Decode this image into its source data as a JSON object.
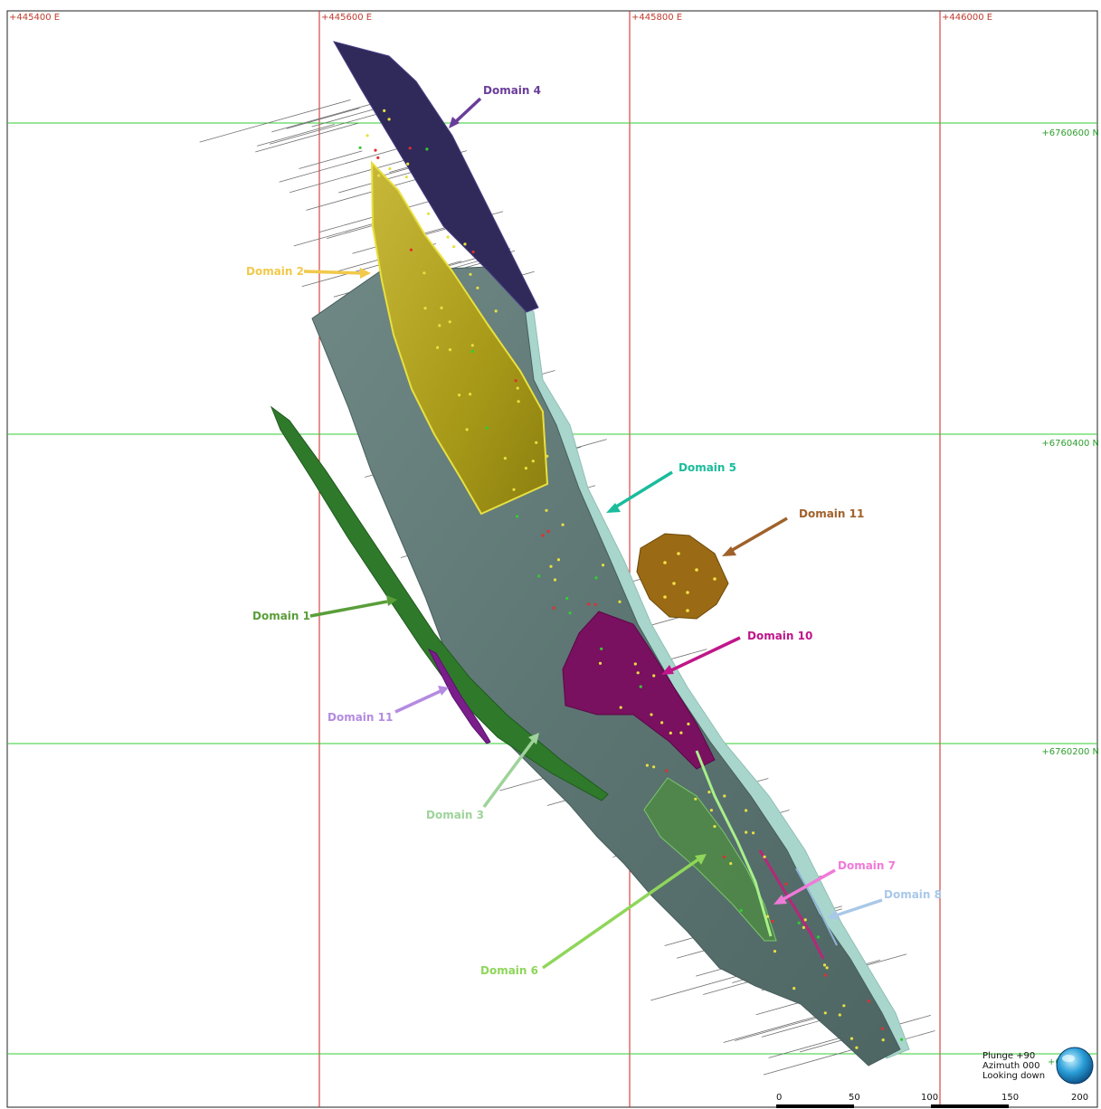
{
  "grid": {
    "eastings": [
      "+445400 E",
      "+445600 E",
      "+445800 E",
      "+446000 E"
    ],
    "northings": [
      "+6760600 N",
      "+6760400 N",
      "+6760200 N",
      "+6760000 N"
    ],
    "northing_label_bottom_visible": "+67",
    "easting_line_color": "#cc2222",
    "northing_line_color": "#33cc33"
  },
  "domains": [
    {
      "label": "Domain 4",
      "color": "#6a3d9a"
    },
    {
      "label": "Domain 2",
      "color": "#f2c94c"
    },
    {
      "label": "Domain 5",
      "color": "#1abc9c"
    },
    {
      "label": "Domain 11",
      "color": "#a0612a"
    },
    {
      "label": "Domain 1",
      "color": "#5a9e3a"
    },
    {
      "label": "Domain 10",
      "color": "#c0168a"
    },
    {
      "label": "Domain 11",
      "color": "#b48be0"
    },
    {
      "label": "Domain 3",
      "color": "#9ed39a"
    },
    {
      "label": "Domain 7",
      "color": "#f07ad8"
    },
    {
      "label": "Domain 8",
      "color": "#a9c8e8"
    },
    {
      "label": "Domain 6",
      "color": "#8fd65a"
    }
  ],
  "view": {
    "plunge": "Plunge +90",
    "azimuth": "Azimuth 000",
    "direction": "Looking down"
  },
  "scale_bar": {
    "ticks": [
      "0",
      "50",
      "100",
      "150",
      "200"
    ]
  }
}
